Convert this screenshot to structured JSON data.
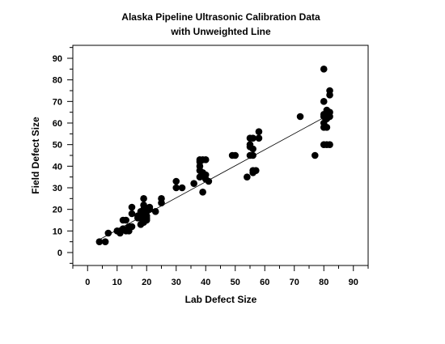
{
  "chart_data": {
    "type": "scatter",
    "title": "Alaska Pipeline Ultrasonic Calibration Data",
    "subtitle": "with Unweighted Line",
    "xlabel": "Lab Defect Size",
    "ylabel": "Field Defect Size",
    "xlim": [
      -5,
      95
    ],
    "ylim": [
      -6,
      96
    ],
    "xticks": [
      0,
      10,
      20,
      30,
      40,
      50,
      60,
      70,
      80,
      90
    ],
    "yticks": [
      0,
      10,
      20,
      30,
      40,
      50,
      60,
      70,
      80,
      90
    ],
    "grid": false,
    "marker_color": "#000000",
    "series": [
      {
        "points": [
          [
            4,
            5
          ],
          [
            6,
            5
          ],
          [
            7,
            9
          ],
          [
            10,
            10
          ],
          [
            11,
            9
          ],
          [
            11,
            10
          ],
          [
            12,
            11
          ],
          [
            12,
            15
          ],
          [
            13,
            15
          ],
          [
            13,
            10
          ],
          [
            14,
            10
          ],
          [
            14,
            12
          ],
          [
            15,
            18
          ],
          [
            15,
            21
          ],
          [
            15,
            12
          ],
          [
            17,
            16
          ],
          [
            17,
            17
          ],
          [
            18,
            13
          ],
          [
            18,
            19
          ],
          [
            18,
            17
          ],
          [
            18,
            16
          ],
          [
            19,
            20
          ],
          [
            19,
            25
          ],
          [
            19,
            22
          ],
          [
            19,
            14
          ],
          [
            19,
            18
          ],
          [
            20,
            17
          ],
          [
            20,
            16
          ],
          [
            20,
            15
          ],
          [
            20,
            19
          ],
          [
            21,
            21
          ],
          [
            21,
            20
          ],
          [
            23,
            19
          ],
          [
            25,
            25
          ],
          [
            25,
            23
          ],
          [
            30,
            33
          ],
          [
            30,
            30
          ],
          [
            32,
            30
          ],
          [
            36,
            32
          ],
          [
            38,
            43
          ],
          [
            38,
            42
          ],
          [
            38,
            40
          ],
          [
            38,
            38
          ],
          [
            38,
            35
          ],
          [
            39,
            43
          ],
          [
            39,
            37
          ],
          [
            39,
            28
          ],
          [
            40,
            43
          ],
          [
            40,
            36
          ],
          [
            40,
            34
          ],
          [
            41,
            33
          ],
          [
            49,
            45
          ],
          [
            50,
            45
          ],
          [
            54,
            35
          ],
          [
            55,
            53
          ],
          [
            55,
            50
          ],
          [
            55,
            49
          ],
          [
            55,
            45
          ],
          [
            56,
            53
          ],
          [
            56,
            48
          ],
          [
            56,
            45
          ],
          [
            56,
            38
          ],
          [
            56,
            37
          ],
          [
            57,
            38
          ],
          [
            58,
            56
          ],
          [
            58,
            53
          ],
          [
            72,
            63
          ],
          [
            77,
            45
          ],
          [
            80,
            85
          ],
          [
            80,
            70
          ],
          [
            80,
            64
          ],
          [
            80,
            63
          ],
          [
            80,
            60
          ],
          [
            80,
            58
          ],
          [
            80,
            50
          ],
          [
            81,
            66
          ],
          [
            81,
            62
          ],
          [
            81,
            58
          ],
          [
            81,
            50
          ],
          [
            82,
            75
          ],
          [
            82,
            73
          ],
          [
            82,
            65
          ],
          [
            82,
            63
          ],
          [
            82,
            50
          ]
        ]
      }
    ],
    "fit_line": {
      "x": [
        4,
        82
      ],
      "y": [
        6,
        64
      ]
    }
  }
}
